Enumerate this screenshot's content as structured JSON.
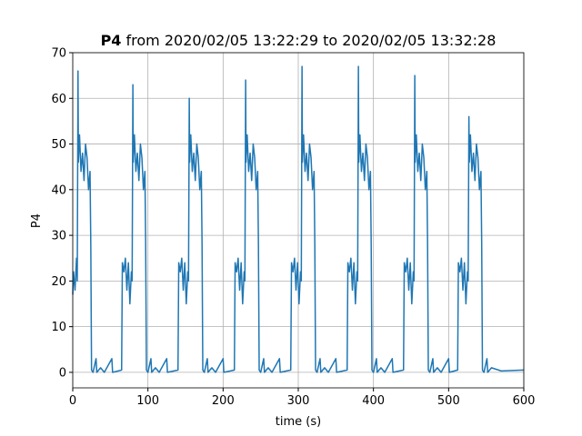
{
  "chart_data": {
    "type": "line",
    "title": [
      "P4",
      "from 2020/02/05 13:22:29 to 2020/02/05 13:32:28"
    ],
    "xlabel": "time (s)",
    "ylabel": "P4",
    "xlim": [
      0,
      600
    ],
    "ylim": [
      -3.4,
      70
    ],
    "xticks": [
      0,
      100,
      200,
      300,
      400,
      500,
      600
    ],
    "yticks": [
      0,
      10,
      20,
      30,
      40,
      50,
      60,
      70
    ],
    "grid": true,
    "series": [
      {
        "name": "P4",
        "color": "#1f77b4",
        "x": [
          0,
          1,
          3,
          5,
          6,
          7,
          7.5,
          9,
          11,
          13,
          15,
          17,
          19,
          21,
          23,
          24,
          25,
          27,
          31,
          32,
          37,
          42,
          52,
          53,
          65,
          66,
          68,
          70,
          72,
          74,
          76,
          78,
          79,
          80,
          80.5,
          82,
          84,
          86,
          88,
          90,
          92,
          94,
          96,
          97,
          98,
          100,
          104,
          105,
          110,
          115,
          125,
          126,
          140,
          141,
          143,
          145,
          147,
          149,
          151,
          153,
          154,
          155,
          155.5,
          157,
          159,
          161,
          163,
          165,
          167,
          169,
          171,
          172,
          173,
          175,
          179,
          180,
          185,
          190,
          200,
          201,
          215,
          216,
          218,
          220,
          222,
          224,
          226,
          228,
          229,
          230,
          230.5,
          232,
          234,
          236,
          238,
          240,
          242,
          244,
          246,
          247,
          248,
          250,
          254,
          255,
          260,
          265,
          275,
          276,
          290,
          291,
          293,
          295,
          297,
          299,
          301,
          303,
          304,
          305,
          305.5,
          307,
          309,
          311,
          313,
          315,
          317,
          319,
          321,
          322,
          323,
          325,
          329,
          330,
          335,
          340,
          350,
          351,
          365,
          366,
          368,
          370,
          372,
          374,
          376,
          378,
          379,
          380,
          380.5,
          382,
          384,
          386,
          388,
          390,
          392,
          394,
          396,
          397,
          398,
          400,
          404,
          405,
          410,
          415,
          425,
          426,
          440,
          441,
          443,
          445,
          447,
          449,
          451,
          453,
          454,
          455,
          455.5,
          457,
          459,
          461,
          463,
          465,
          467,
          469,
          471,
          472,
          473,
          475,
          479,
          480,
          485,
          490,
          500,
          501,
          512,
          513,
          515,
          517,
          519,
          521,
          523,
          525,
          526,
          527,
          527.5,
          529,
          531,
          533,
          535,
          537,
          539,
          541,
          543,
          544,
          545,
          547,
          551,
          552,
          557,
          570,
          600
        ],
        "values": [
          17,
          22,
          18,
          25,
          20,
          66,
          46,
          52,
          44,
          48,
          42,
          50,
          47,
          40,
          44,
          28,
          0.5,
          0,
          3,
          0,
          1,
          0,
          3,
          0,
          0.5,
          24,
          22,
          25,
          18,
          24,
          15,
          22,
          20,
          63,
          46,
          52,
          44,
          48,
          42,
          50,
          47,
          40,
          44,
          28,
          0.5,
          0,
          3,
          0,
          1,
          0,
          3,
          0,
          0.5,
          24,
          22,
          25,
          18,
          24,
          15,
          22,
          20,
          60,
          46,
          52,
          44,
          48,
          42,
          50,
          47,
          40,
          44,
          28,
          0.5,
          0,
          3,
          0,
          1,
          0,
          3,
          0,
          0.5,
          24,
          22,
          25,
          18,
          24,
          15,
          22,
          20,
          64,
          46,
          52,
          44,
          48,
          42,
          50,
          47,
          40,
          44,
          28,
          0.5,
          0,
          3,
          0,
          1,
          0,
          3,
          0,
          0.5,
          24,
          22,
          25,
          18,
          24,
          15,
          22,
          20,
          67,
          46,
          52,
          44,
          48,
          42,
          50,
          47,
          40,
          44,
          28,
          0.5,
          0,
          3,
          0,
          1,
          0,
          3,
          0,
          0.5,
          24,
          22,
          25,
          18,
          24,
          15,
          22,
          20,
          67,
          46,
          52,
          44,
          48,
          42,
          50,
          47,
          40,
          44,
          28,
          0.5,
          0,
          3,
          0,
          1,
          0,
          3,
          0,
          0.5,
          24,
          22,
          25,
          18,
          24,
          15,
          22,
          20,
          65,
          46,
          52,
          44,
          48,
          42,
          50,
          47,
          40,
          44,
          28,
          0.5,
          0,
          3,
          0,
          1,
          0,
          3,
          0,
          0.5,
          24,
          22,
          25,
          18,
          24,
          15,
          22,
          20,
          56,
          46,
          52,
          44,
          48,
          42,
          50,
          47,
          40,
          44,
          28,
          0.5,
          0,
          3,
          0,
          1,
          0.3,
          0.5
        ]
      }
    ]
  }
}
